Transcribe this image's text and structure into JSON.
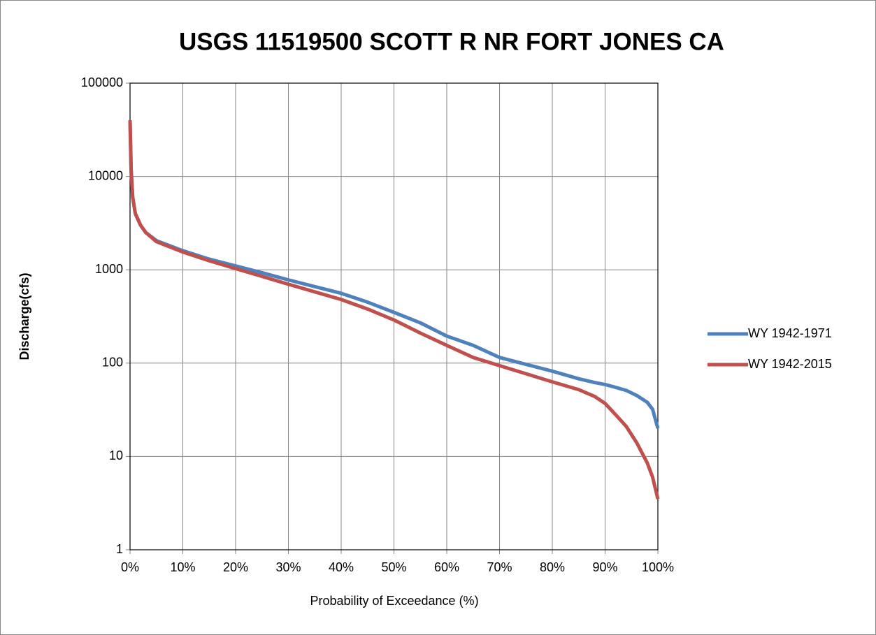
{
  "chart_data": {
    "type": "line",
    "title": "USGS 11519500 SCOTT R NR FORT JONES CA",
    "x_label": "Probability of Exceedance (%)",
    "y_label": "Discharge(cfs)",
    "x": [
      0,
      0.2,
      0.5,
      1,
      2,
      3,
      5,
      10,
      15,
      20,
      25,
      30,
      35,
      40,
      45,
      50,
      55,
      60,
      65,
      70,
      75,
      80,
      85,
      88,
      90,
      92,
      94,
      96,
      98,
      99,
      100
    ],
    "series": [
      {
        "name": "WY 1942-1971",
        "color": "#4f81bd",
        "values": [
          40000,
          12000,
          6000,
          4000,
          3000,
          2500,
          2050,
          1600,
          1300,
          1100,
          930,
          780,
          660,
          560,
          450,
          350,
          270,
          195,
          155,
          115,
          97,
          82,
          68,
          62,
          59,
          55,
          51,
          45,
          38,
          32,
          20
        ]
      },
      {
        "name": "WY 1942-2015",
        "color": "#c0504d",
        "values": [
          40000,
          12000,
          6000,
          4000,
          3000,
          2500,
          2000,
          1550,
          1250,
          1030,
          850,
          700,
          580,
          480,
          380,
          290,
          210,
          155,
          115,
          94,
          77,
          63,
          52,
          44,
          37,
          28,
          21,
          14,
          8.5,
          6,
          3.5
        ]
      }
    ],
    "xlim": [
      0,
      100
    ],
    "xticks": [
      {
        "value": 0,
        "label": "0%"
      },
      {
        "value": 10,
        "label": "10%"
      },
      {
        "value": 20,
        "label": "20%"
      },
      {
        "value": 30,
        "label": "30%"
      },
      {
        "value": 40,
        "label": "40%"
      },
      {
        "value": 50,
        "label": "50%"
      },
      {
        "value": 60,
        "label": "60%"
      },
      {
        "value": 70,
        "label": "70%"
      },
      {
        "value": 80,
        "label": "80%"
      },
      {
        "value": 90,
        "label": "90%"
      },
      {
        "value": 100,
        "label": "100%"
      }
    ],
    "ylim": [
      1,
      100000
    ],
    "yticks": [
      1,
      10,
      100,
      1000,
      10000,
      100000
    ],
    "ylog": true,
    "grid": true,
    "legend": "right"
  }
}
